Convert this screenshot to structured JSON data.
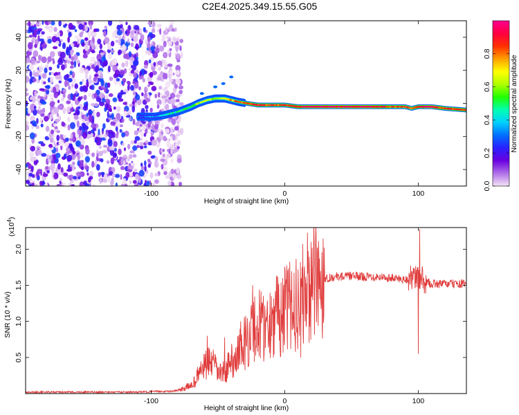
{
  "title": "C2E4.2025.349.15.55.G05",
  "chart_data": [
    {
      "type": "heatmap",
      "name": "spectrogram",
      "xlabel": "Height of straight line (km)",
      "ylabel": "Frequency (Hz)",
      "xlim": [
        -194,
        136
      ],
      "ylim": [
        -50,
        50
      ],
      "xticks": [
        -100,
        0,
        100
      ],
      "xtick_labels": [
        "-100",
        "0",
        "100"
      ],
      "yticks": [
        -40,
        -20,
        0,
        20,
        40
      ],
      "ytick_labels": [
        "-40",
        "-20",
        "0",
        "20",
        "40"
      ],
      "colorbar": {
        "label": "Normalized spectral amplitude",
        "range": [
          0,
          1
        ],
        "ticks": [
          0.0,
          0.2,
          0.4,
          0.6,
          0.8
        ],
        "tick_labels": [
          "0.0",
          "0.2",
          "0.4",
          "0.6",
          "0.8"
        ],
        "colors": [
          "#f5e6f5",
          "#b070e8",
          "#6a00e0",
          "#2a20ff",
          "#0070ff",
          "#00d0ff",
          "#00ffb0",
          "#20ff00",
          "#b0ff00",
          "#ffff00",
          "#ffa000",
          "#ff3000",
          "#ff0040",
          "#ff0090"
        ]
      },
      "noise_region": {
        "x_range": [
          -194,
          -85
        ],
        "freq_range": [
          -50,
          50
        ]
      },
      "ridge": {
        "x": [
          -110,
          -97,
          -90,
          -80,
          -70,
          -65,
          -58,
          -52,
          -45,
          -40,
          -35,
          -28,
          -20,
          -10,
          0,
          10,
          20,
          30,
          40,
          50,
          60,
          70,
          80,
          90,
          95,
          100,
          110,
          120,
          136
        ],
        "freq": [
          -8,
          -8,
          -7,
          -5,
          -2,
          0,
          2,
          3,
          3,
          2,
          1,
          0,
          -1,
          -1,
          -1,
          -2,
          -2,
          -2,
          -2,
          -2,
          -2,
          -2,
          -2,
          -2,
          -3,
          -2,
          -2,
          -3,
          -4
        ],
        "amp": [
          0.3,
          0.35,
          0.45,
          0.5,
          0.55,
          0.6,
          0.65,
          0.6,
          0.7,
          0.75,
          0.8,
          0.85,
          0.9,
          0.85,
          0.85,
          0.9,
          0.95,
          0.95,
          0.95,
          0.95,
          0.95,
          0.92,
          0.85,
          0.85,
          0.8,
          0.9,
          0.95,
          0.85,
          0.9
        ]
      }
    },
    {
      "type": "line",
      "name": "snr",
      "xlabel": "Height of straight line (km)",
      "ylabel": "SNR (10 * v/v)",
      "y_multiplier": "(x10",
      "y_multiplier_exp": "4",
      "xlim": [
        -194,
        136
      ],
      "ylim": [
        0.0,
        2.3
      ],
      "xticks": [
        -100,
        0,
        100
      ],
      "xtick_labels": [
        "-100",
        "0",
        "100"
      ],
      "yticks": [
        0.5,
        1.0,
        1.5,
        2.0
      ],
      "ytick_labels": [
        "0.5",
        "1.0",
        "1.5",
        "2.0"
      ],
      "color": "#e03c3c",
      "x": [
        -194,
        -170,
        -140,
        -110,
        -95,
        -85,
        -78,
        -72,
        -68,
        -65,
        -62,
        -58,
        -55,
        -52,
        -50,
        -47,
        -44,
        -40,
        -35,
        -30,
        -25,
        -20,
        -15,
        -10,
        -5,
        0,
        5,
        10,
        15,
        20,
        25,
        30,
        40,
        50,
        60,
        70,
        80,
        90,
        95,
        98,
        100,
        102,
        105,
        110,
        120,
        136
      ],
      "y": [
        0.02,
        0.02,
        0.02,
        0.02,
        0.03,
        0.03,
        0.05,
        0.1,
        0.15,
        0.25,
        0.35,
        0.4,
        0.45,
        0.35,
        0.3,
        0.28,
        0.32,
        0.45,
        0.55,
        0.7,
        0.85,
        0.95,
        0.95,
        1.0,
        1.1,
        1.15,
        1.2,
        1.3,
        1.4,
        1.5,
        1.55,
        1.6,
        1.62,
        1.63,
        1.62,
        1.62,
        1.6,
        1.58,
        1.6,
        1.6,
        1.6,
        1.6,
        1.55,
        1.52,
        1.52,
        1.52
      ],
      "spikes": [
        {
          "x": -58,
          "y": 0.8
        },
        {
          "x": -45,
          "y": 0.78
        },
        {
          "x": -33,
          "y": 1.0
        },
        {
          "x": -24,
          "y": 1.5
        },
        {
          "x": -10,
          "y": 1.35
        },
        {
          "x": 10,
          "y": 1.72
        },
        {
          "x": 13,
          "y": 1.75
        },
        {
          "x": 12,
          "y": 0.5
        },
        {
          "x": 101,
          "y": 2.28
        },
        {
          "x": 100,
          "y": 0.55
        }
      ]
    }
  ]
}
